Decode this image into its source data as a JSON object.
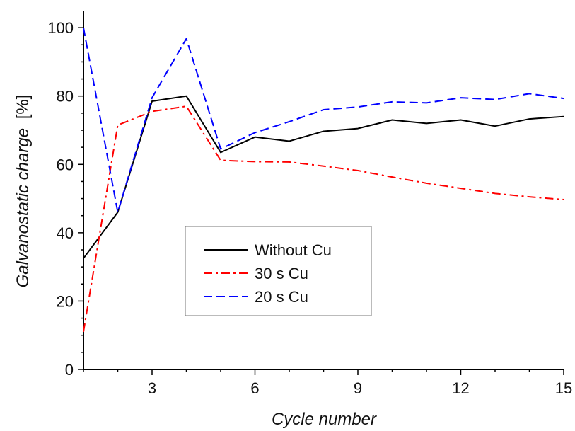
{
  "chart_data": {
    "type": "line",
    "title": "",
    "xlabel": "Cycle number",
    "ylabel_main": "Galvanostatic charge",
    "ylabel_unit": "[%]",
    "xlim": [
      1,
      15
    ],
    "ylim": [
      0,
      105
    ],
    "xticks": [
      3,
      6,
      9,
      12,
      15
    ],
    "yticks": [
      0,
      20,
      40,
      60,
      80,
      100
    ],
    "grid": false,
    "legend_position": "center-left",
    "x": [
      1,
      2,
      3,
      4,
      5,
      6,
      7,
      8,
      9,
      10,
      11,
      12,
      13,
      14,
      15
    ],
    "series": [
      {
        "name": "Without Cu",
        "color": "#000000",
        "dash": "solid",
        "values": [
          32.5,
          46,
          78.5,
          80,
          63.5,
          68,
          66.8,
          69.7,
          70.5,
          73,
          72,
          73,
          71.2,
          73.3,
          74
        ]
      },
      {
        "name": "30 s Cu",
        "color": "#ff0000",
        "dash": "dashdot",
        "values": [
          11,
          71.5,
          75.5,
          77,
          61.2,
          60.8,
          60.7,
          59.5,
          58.2,
          56.3,
          54.5,
          53,
          51.5,
          50.5,
          49.7
        ]
      },
      {
        "name": "20 s Cu",
        "color": "#0000ff",
        "dash": "dashed",
        "values": [
          100,
          46,
          79.5,
          96.8,
          64.5,
          69.3,
          72.5,
          76,
          76.8,
          78.3,
          78,
          79.5,
          79,
          80.7,
          79.3
        ]
      }
    ]
  }
}
